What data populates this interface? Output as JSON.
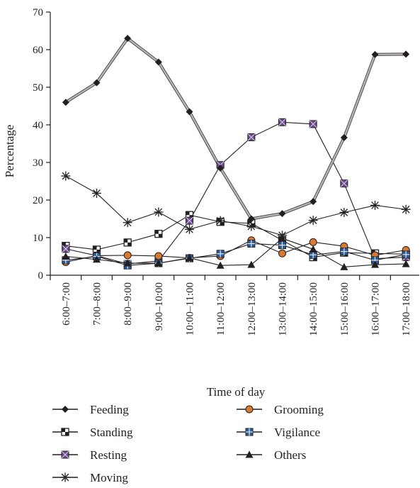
{
  "chart_data": {
    "type": "line",
    "title": "",
    "xlabel": "Time of day",
    "ylabel": "Percentage",
    "ylim": [
      0,
      70
    ],
    "yticks": [
      0,
      10,
      20,
      30,
      40,
      50,
      60,
      70
    ],
    "grid": false,
    "legend_position": "bottom",
    "categories": [
      "6:00–7:00",
      "7:00–8:00",
      "8:00–9:00",
      "9:00–10:00",
      "10:00–11:00",
      "11:00–12:00",
      "12:00–13:00",
      "13:00–14:00",
      "14:00–15:00",
      "15:00–16:00",
      "16:00–17:00",
      "17:00–18:00"
    ],
    "series": [
      {
        "name": "Feeding",
        "marker": "diamond",
        "color": "#231f20",
        "line_color": "#9a9a9a",
        "values": [
          46.0,
          51.2,
          63.0,
          56.7,
          43.5,
          28.5,
          15.0,
          16.4,
          19.6,
          36.6,
          58.7,
          58.8
        ]
      },
      {
        "name": "Standing",
        "marker": "checker-square",
        "color": "#231f20",
        "line_color": "#231f20",
        "values": [
          7.8,
          6.8,
          8.7,
          11.0,
          16.0,
          14.2,
          13.8,
          9.3,
          4.8,
          6.0,
          5.8,
          5.6
        ]
      },
      {
        "name": "Resting",
        "marker": "x-square",
        "color": "#6b4c8e",
        "line_color": "#231f20",
        "values": [
          7.0,
          5.2,
          3.0,
          3.8,
          14.5,
          29.3,
          36.7,
          40.7,
          40.2,
          24.4,
          4.4,
          4.8
        ]
      },
      {
        "name": "Moving",
        "marker": "asterisk",
        "color": "#231f20",
        "line_color": "#231f20",
        "values": [
          26.4,
          21.8,
          14.0,
          16.8,
          12.2,
          14.5,
          13.0,
          10.6,
          14.6,
          16.7,
          18.6,
          17.5
        ]
      },
      {
        "name": "Grooming",
        "marker": "circle",
        "color": "#d97a30",
        "line_color": "#231f20",
        "values": [
          3.5,
          5.2,
          5.3,
          5.1,
          4.6,
          5.1,
          9.3,
          5.8,
          8.8,
          7.7,
          5.3,
          6.7
        ]
      },
      {
        "name": "Vigilance",
        "marker": "plus-square",
        "color": "#2b5d9a",
        "line_color": "#231f20",
        "values": [
          4.0,
          5.0,
          2.6,
          3.2,
          4.5,
          5.7,
          8.4,
          8.0,
          5.4,
          6.3,
          4.0,
          5.5
        ]
      },
      {
        "name": "Others",
        "marker": "triangle",
        "color": "#231f20",
        "line_color": "#231f20",
        "values": [
          5.0,
          4.2,
          3.2,
          3.2,
          4.6,
          2.6,
          2.8,
          9.8,
          6.9,
          2.2,
          2.8,
          3.0
        ]
      }
    ]
  }
}
